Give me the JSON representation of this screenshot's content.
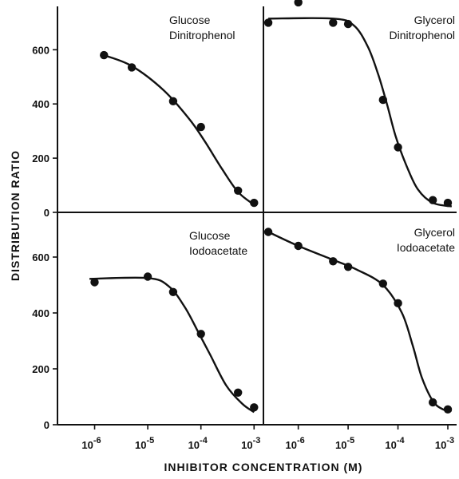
{
  "chart_data": {
    "type": "scatter",
    "xlabel": "INHIBITOR CONCENTRATION (M)",
    "ylabel": "DISTRIBUTION RATIO",
    "xscale": "log",
    "xlim": [
      2e-07,
      0.0015
    ],
    "ylim": [
      0,
      760
    ],
    "yticks": [
      0,
      200,
      400,
      600
    ],
    "xtick_labels": [
      {
        "base": "10",
        "exp": "-6"
      },
      {
        "base": "10",
        "exp": "-5"
      },
      {
        "base": "10",
        "exp": "-4"
      },
      {
        "base": "10",
        "exp": "-3"
      }
    ],
    "panels": [
      {
        "annotation": [
          "Glucose",
          "Dinitrophenol"
        ],
        "points": [
          [
            1.5e-06,
            580
          ],
          [
            5e-06,
            535
          ],
          [
            3e-05,
            410
          ],
          [
            0.0001,
            315
          ],
          [
            0.0005,
            80
          ],
          [
            0.001,
            35
          ]
        ],
        "curve": [
          [
            1.5e-06,
            580
          ],
          [
            5e-06,
            540
          ],
          [
            2e-05,
            450
          ],
          [
            6e-05,
            345
          ],
          [
            0.00012,
            260
          ],
          [
            0.00025,
            160
          ],
          [
            0.0005,
            75
          ],
          [
            0.001,
            28
          ]
        ]
      },
      {
        "annotation": [
          "Glycerol",
          "Dinitrophenol"
        ],
        "points": [
          [
            2.5e-07,
            700
          ],
          [
            1e-06,
            775
          ],
          [
            5e-06,
            700
          ],
          [
            1e-05,
            695
          ],
          [
            5e-05,
            415
          ],
          [
            0.0001,
            240
          ],
          [
            0.0005,
            45
          ],
          [
            0.001,
            35
          ]
        ],
        "curve": [
          [
            2.5e-07,
            715
          ],
          [
            5e-06,
            715
          ],
          [
            1.3e-05,
            690
          ],
          [
            2.5e-05,
            610
          ],
          [
            4e-05,
            510
          ],
          [
            6e-05,
            400
          ],
          [
            9e-05,
            280
          ],
          [
            0.00015,
            170
          ],
          [
            0.00025,
            85
          ],
          [
            0.0005,
            35
          ],
          [
            0.0012,
            22
          ]
        ]
      },
      {
        "annotation": [
          "Glucose",
          "Iodoacetate"
        ],
        "points": [
          [
            1e-06,
            510
          ],
          [
            1e-05,
            530
          ],
          [
            3e-05,
            475
          ],
          [
            0.0001,
            325
          ],
          [
            0.0005,
            115
          ],
          [
            0.001,
            62
          ]
        ],
        "curve": [
          [
            8e-07,
            522
          ],
          [
            1e-05,
            525
          ],
          [
            2.5e-05,
            495
          ],
          [
            5e-05,
            420
          ],
          [
            9e-05,
            330
          ],
          [
            0.00015,
            250
          ],
          [
            0.0003,
            140
          ],
          [
            0.0006,
            75
          ],
          [
            0.001,
            45
          ]
        ]
      },
      {
        "annotation": [
          "Glycerol",
          "Iodoacetate"
        ],
        "points": [
          [
            2.5e-07,
            690
          ],
          [
            1e-06,
            640
          ],
          [
            5e-06,
            585
          ],
          [
            1e-05,
            565
          ],
          [
            5e-05,
            505
          ],
          [
            0.0001,
            435
          ],
          [
            0.0005,
            80
          ],
          [
            0.001,
            55
          ]
        ],
        "curve": [
          [
            2.5e-07,
            690
          ],
          [
            1e-06,
            640
          ],
          [
            5e-06,
            590
          ],
          [
            1.5e-05,
            555
          ],
          [
            5e-05,
            500
          ],
          [
            0.00012,
            400
          ],
          [
            0.0002,
            280
          ],
          [
            0.0003,
            170
          ],
          [
            0.0005,
            85
          ],
          [
            0.0008,
            55
          ],
          [
            0.0012,
            50
          ]
        ]
      }
    ]
  }
}
